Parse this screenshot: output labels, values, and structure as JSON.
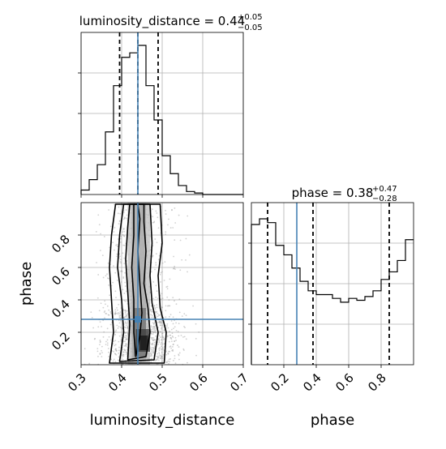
{
  "chart_data": [
    {
      "type": "histogram",
      "panel": "luminosity_distance-marginal",
      "title": {
        "main": "luminosity_distance = 0.44",
        "plus": "+0.05",
        "minus": "−0.05"
      },
      "bin_edges": [
        0.3,
        0.32,
        0.34,
        0.36,
        0.38,
        0.4,
        0.42,
        0.44,
        0.46,
        0.48,
        0.5,
        0.52,
        0.54,
        0.56,
        0.58,
        0.6,
        0.62,
        0.64,
        0.66,
        0.68,
        0.7
      ],
      "counts": [
        3,
        10,
        20,
        42,
        73,
        92,
        95,
        100,
        73,
        50,
        26,
        14,
        6,
        2,
        1,
        0,
        0,
        0,
        0,
        0
      ],
      "quantiles": [
        0.395,
        0.44,
        0.49
      ],
      "truth": 0.44,
      "xlim": [
        0.3,
        0.7
      ]
    },
    {
      "type": "histogram",
      "panel": "phase-marginal",
      "title": {
        "main": "phase = 0.38",
        "plus": "+0.47",
        "minus": "−0.28"
      },
      "bin_edges": [
        0.0,
        0.05,
        0.1,
        0.15,
        0.2,
        0.25,
        0.3,
        0.35,
        0.4,
        0.45,
        0.5,
        0.55,
        0.6,
        0.65,
        0.7,
        0.75,
        0.8,
        0.85,
        0.9,
        0.95,
        1.0
      ],
      "counts": [
        74,
        77,
        75,
        63,
        58,
        51,
        44,
        39,
        37,
        37,
        35,
        33,
        35,
        34,
        36,
        39,
        45,
        49,
        55,
        66
      ],
      "quantiles": [
        0.1,
        0.38,
        0.85
      ],
      "truth": 0.28,
      "xlim": [
        0.0,
        1.0
      ]
    },
    {
      "type": "scatter",
      "panel": "joint-luminosity_distance-vs-phase",
      "xlabel": "luminosity_distance",
      "ylabel": "phase",
      "xlim": [
        0.3,
        0.7
      ],
      "ylim": [
        0.0,
        1.0
      ],
      "xticks": [
        "0.3",
        "0.4",
        "0.5",
        "0.6",
        "0.7"
      ],
      "yticks": [
        "0.2",
        "0.4",
        "0.6",
        "0.8"
      ],
      "truth": {
        "x": 0.44,
        "y": 0.28
      },
      "contours": [
        [
          [
            0.435,
            0.05
          ],
          [
            0.445,
            0.18
          ],
          [
            0.45,
            0.32
          ],
          [
            0.445,
            0.5
          ],
          [
            0.44,
            0.7
          ],
          [
            0.445,
            0.9
          ],
          [
            0.44,
            0.99
          ],
          [
            0.43,
            0.99
          ],
          [
            0.43,
            0.8
          ],
          [
            0.425,
            0.6
          ],
          [
            0.43,
            0.4
          ],
          [
            0.43,
            0.2
          ]
        ],
        [
          [
            0.415,
            0.03
          ],
          [
            0.46,
            0.05
          ],
          [
            0.47,
            0.2
          ],
          [
            0.465,
            0.35
          ],
          [
            0.455,
            0.5
          ],
          [
            0.46,
            0.7
          ],
          [
            0.455,
            0.88
          ],
          [
            0.455,
            0.99
          ],
          [
            0.42,
            0.99
          ],
          [
            0.415,
            0.85
          ],
          [
            0.41,
            0.65
          ],
          [
            0.415,
            0.45
          ],
          [
            0.42,
            0.25
          ]
        ],
        [
          [
            0.395,
            0.02
          ],
          [
            0.48,
            0.03
          ],
          [
            0.49,
            0.2
          ],
          [
            0.475,
            0.38
          ],
          [
            0.47,
            0.55
          ],
          [
            0.475,
            0.75
          ],
          [
            0.47,
            0.99
          ],
          [
            0.405,
            0.99
          ],
          [
            0.395,
            0.8
          ],
          [
            0.39,
            0.6
          ],
          [
            0.4,
            0.4
          ],
          [
            0.405,
            0.2
          ]
        ],
        [
          [
            0.37,
            0.01
          ],
          [
            0.505,
            0.01
          ],
          [
            0.51,
            0.2
          ],
          [
            0.495,
            0.35
          ],
          [
            0.49,
            0.55
          ],
          [
            0.5,
            0.75
          ],
          [
            0.495,
            0.99
          ],
          [
            0.385,
            0.99
          ],
          [
            0.375,
            0.8
          ],
          [
            0.37,
            0.6
          ],
          [
            0.375,
            0.4
          ],
          [
            0.38,
            0.2
          ]
        ]
      ]
    }
  ],
  "ticklabels": {
    "lumi_x": [
      "0.3",
      "0.4",
      "0.5",
      "0.6",
      "0.7"
    ],
    "phase_x": [
      "0.2",
      "0.4",
      "0.6",
      "0.8"
    ],
    "phase_y": [
      "0.2",
      "0.4",
      "0.6",
      "0.8"
    ]
  },
  "labels": {
    "xlabel_left": "luminosity_distance",
    "xlabel_right": "phase",
    "ylabel": "phase"
  },
  "colors": {
    "truth": "#4682b4",
    "line": "#000000",
    "grid": "#b0b0b0"
  }
}
